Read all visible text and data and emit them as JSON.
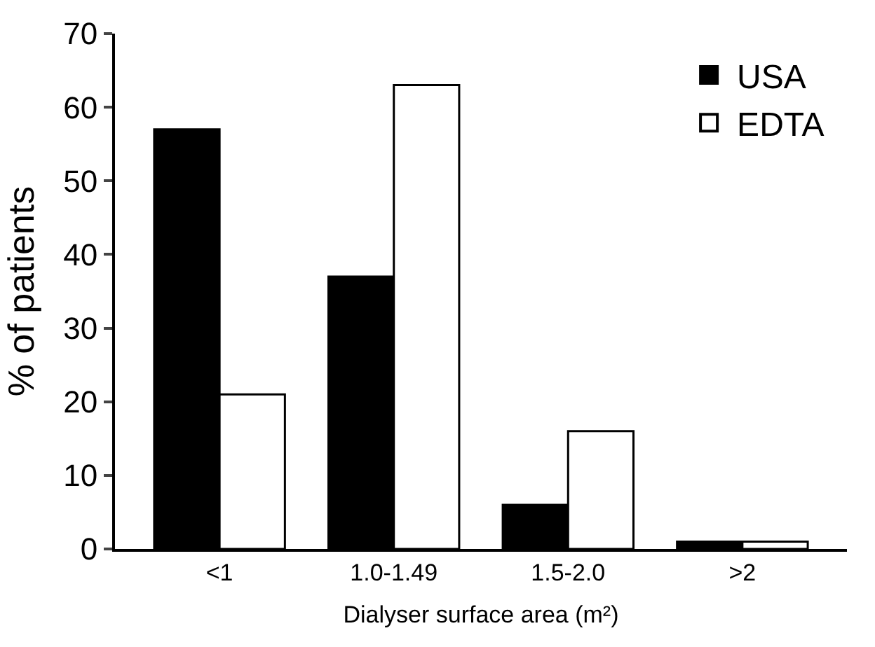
{
  "chart_data": {
    "type": "bar",
    "xlabel": "Dialyser surface area (m²)",
    "ylabel": "% of patients",
    "categories": [
      "<1",
      "1.0-1.49",
      "1.5-2.0",
      ">2"
    ],
    "series": [
      {
        "name": "USA",
        "color": "#000000",
        "values": [
          57,
          37,
          6,
          1
        ]
      },
      {
        "name": "EDTA",
        "color": "#ffffff",
        "values": [
          21,
          63,
          16,
          1
        ]
      }
    ],
    "ylim": [
      0,
      70
    ],
    "yticks": [
      0,
      10,
      20,
      30,
      40,
      50,
      60,
      70
    ],
    "legend": "top right"
  }
}
